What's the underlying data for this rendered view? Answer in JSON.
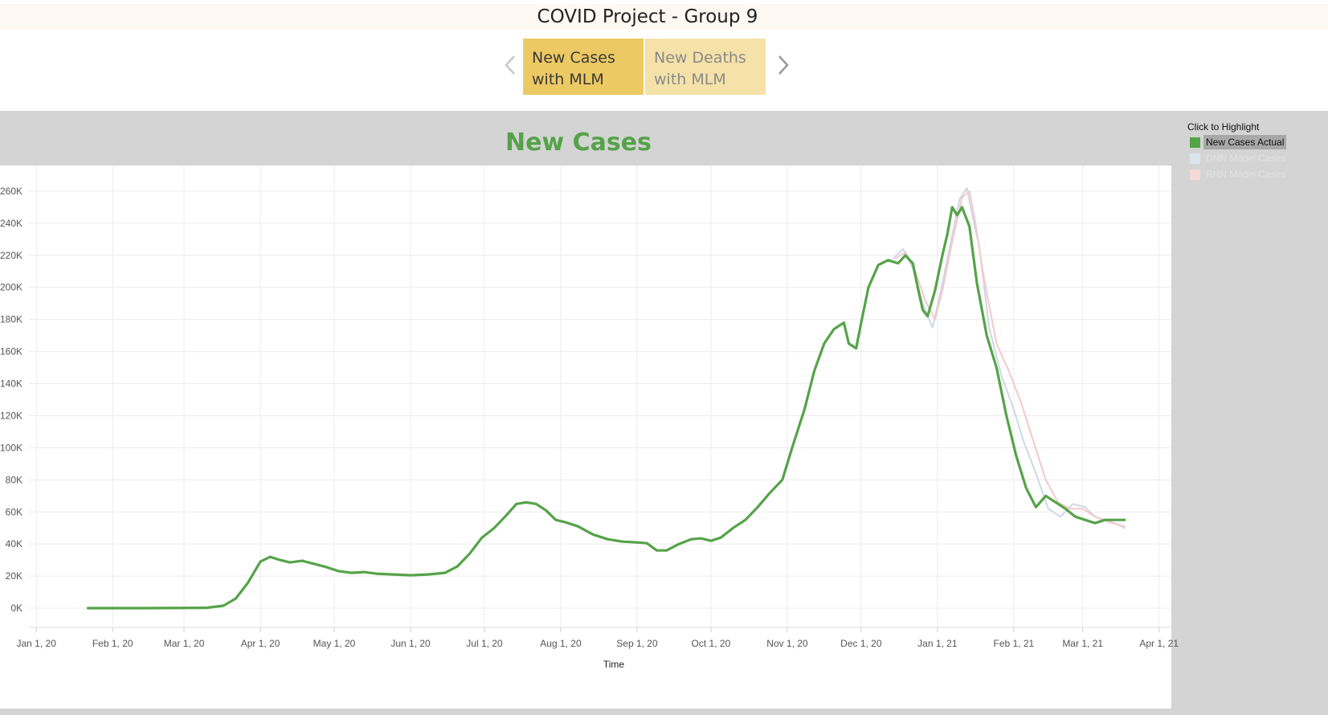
{
  "page": {
    "title": "COVID Project - Group 9"
  },
  "tabs": [
    {
      "line1": "New Cases",
      "line2": "with MLM",
      "active": true
    },
    {
      "line1": "New Deaths",
      "line2": "with MLM",
      "active": false
    }
  ],
  "icons": {
    "prev": "chevron-left-icon",
    "next": "chevron-right-icon"
  },
  "colors": {
    "actual": "#55a349",
    "dnn": "#cfd7e6",
    "rnn": "#f3c9c9",
    "title_bar": "#fdf8f1",
    "tab_active": "#ecc962",
    "tab_inactive": "#f5e2a9"
  },
  "legend": {
    "title": "Click to Highlight",
    "items": [
      {
        "label": "New Cases Actual",
        "color": "#55a349"
      },
      {
        "label": "DNN Model Cases",
        "color": "#dbe3ef"
      },
      {
        "label": "RNN Model Cases",
        "color": "#f5d8d8"
      }
    ]
  },
  "chart_data": {
    "type": "line",
    "title": "New Cases",
    "xlabel": "Time",
    "ylabel": "",
    "grid": true,
    "legend_position": "right",
    "ylim": [
      -12000,
      276000
    ],
    "xlim": [
      "2019-12-29",
      "2021-04-06"
    ],
    "y_ticks": [
      0,
      20000,
      40000,
      60000,
      80000,
      100000,
      120000,
      140000,
      160000,
      180000,
      200000,
      220000,
      240000,
      260000
    ],
    "y_tick_labels": [
      "0K",
      "20K",
      "40K",
      "60K",
      "80K",
      "100K",
      "120K",
      "140K",
      "160K",
      "180K",
      "200K",
      "220K",
      "240K",
      "260K"
    ],
    "x_ticks": [
      "2020-01-01",
      "2020-02-01",
      "2020-03-01",
      "2020-04-01",
      "2020-05-01",
      "2020-06-01",
      "2020-07-01",
      "2020-08-01",
      "2020-09-01",
      "2020-10-01",
      "2020-11-01",
      "2020-12-01",
      "2021-01-01",
      "2021-02-01",
      "2021-03-01",
      "2021-04-01"
    ],
    "x_tick_labels": [
      "Jan 1, 20",
      "Feb 1, 20",
      "Mar 1, 20",
      "Apr 1, 20",
      "May 1, 20",
      "Jun 1, 20",
      "Jul 1, 20",
      "Aug 1, 20",
      "Sep 1, 20",
      "Oct 1, 20",
      "Nov 1, 20",
      "Dec 1, 20",
      "Jan 1, 21",
      "Feb 1, 21",
      "Mar 1, 21",
      "Apr 1, 21"
    ],
    "series": [
      {
        "name": "New Cases Actual",
        "x": [
          "2020-01-22",
          "2020-02-15",
          "2020-03-10",
          "2020-03-17",
          "2020-03-22",
          "2020-03-27",
          "2020-04-01",
          "2020-04-05",
          "2020-04-09",
          "2020-04-13",
          "2020-04-18",
          "2020-04-23",
          "2020-04-28",
          "2020-05-03",
          "2020-05-08",
          "2020-05-13",
          "2020-05-18",
          "2020-05-25",
          "2020-06-01",
          "2020-06-08",
          "2020-06-15",
          "2020-06-20",
          "2020-06-25",
          "2020-06-30",
          "2020-07-05",
          "2020-07-10",
          "2020-07-14",
          "2020-07-18",
          "2020-07-22",
          "2020-07-26",
          "2020-07-30",
          "2020-08-03",
          "2020-08-08",
          "2020-08-14",
          "2020-08-20",
          "2020-08-26",
          "2020-09-01",
          "2020-09-05",
          "2020-09-09",
          "2020-09-13",
          "2020-09-18",
          "2020-09-23",
          "2020-09-27",
          "2020-10-01",
          "2020-10-05",
          "2020-10-10",
          "2020-10-15",
          "2020-10-20",
          "2020-10-25",
          "2020-10-30",
          "2020-11-03",
          "2020-11-08",
          "2020-11-12",
          "2020-11-16",
          "2020-11-20",
          "2020-11-24",
          "2020-11-26",
          "2020-11-29",
          "2020-12-01",
          "2020-12-04",
          "2020-12-08",
          "2020-12-12",
          "2020-12-16",
          "2020-12-19",
          "2020-12-22",
          "2020-12-24",
          "2020-12-26",
          "2020-12-28",
          "2020-12-31",
          "2021-01-03",
          "2021-01-05",
          "2021-01-07",
          "2021-01-09",
          "2021-01-11",
          "2021-01-14",
          "2021-01-17",
          "2021-01-21",
          "2021-01-25",
          "2021-01-29",
          "2021-02-02",
          "2021-02-06",
          "2021-02-10",
          "2021-02-14",
          "2021-02-18",
          "2021-02-22",
          "2021-02-26",
          "2021-03-02",
          "2021-03-06",
          "2021-03-10",
          "2021-03-14",
          "2021-03-18"
        ],
        "y": [
          0,
          0,
          200,
          1500,
          6000,
          16000,
          29000,
          32000,
          30000,
          28500,
          29500,
          27500,
          25500,
          23000,
          22000,
          22500,
          21500,
          21000,
          20500,
          21000,
          22000,
          26000,
          34000,
          44000,
          50000,
          58000,
          65000,
          66000,
          65000,
          61000,
          55000,
          53500,
          51000,
          46000,
          43000,
          41500,
          41000,
          40500,
          36000,
          36000,
          40000,
          43000,
          43500,
          42000,
          44000,
          50000,
          55000,
          63000,
          72000,
          80000,
          100000,
          124000,
          148000,
          165000,
          174000,
          178000,
          165000,
          162000,
          178000,
          200000,
          214000,
          217000,
          215000,
          220000,
          215000,
          200000,
          186000,
          182000,
          198000,
          220000,
          233000,
          250000,
          245000,
          250000,
          238000,
          203000,
          170000,
          150000,
          120000,
          95000,
          75000,
          63000,
          70000,
          66000,
          62000,
          57000,
          55000,
          53000,
          55000,
          55000,
          55000
        ]
      },
      {
        "name": "DNN Model Cases",
        "x": [
          "2020-12-14",
          "2020-12-18",
          "2020-12-22",
          "2020-12-26",
          "2020-12-30",
          "2021-01-02",
          "2021-01-06",
          "2021-01-10",
          "2021-01-13",
          "2021-01-15",
          "2021-01-18",
          "2021-01-22",
          "2021-01-27",
          "2021-02-01",
          "2021-02-05",
          "2021-02-10",
          "2021-02-15",
          "2021-02-20",
          "2021-02-25",
          "2021-03-02",
          "2021-03-06",
          "2021-03-10",
          "2021-03-14",
          "2021-03-18"
        ],
        "y": [
          218000,
          224000,
          212000,
          190000,
          175000,
          195000,
          225000,
          255000,
          262000,
          246000,
          225000,
          175000,
          145000,
          124000,
          104000,
          84000,
          62000,
          57000,
          65000,
          63000,
          57000,
          55000,
          53000,
          50000
        ]
      },
      {
        "name": "RNN Model Cases",
        "x": [
          "2020-12-15",
          "2020-12-19",
          "2020-12-23",
          "2020-12-27",
          "2020-12-31",
          "2021-01-03",
          "2021-01-07",
          "2021-01-11",
          "2021-01-14",
          "2021-01-16",
          "2021-01-20",
          "2021-01-25",
          "2021-01-30",
          "2021-02-04",
          "2021-02-09",
          "2021-02-14",
          "2021-02-19",
          "2021-02-24",
          "2021-03-01",
          "2021-03-05",
          "2021-03-09",
          "2021-03-13",
          "2021-03-18"
        ],
        "y": [
          218000,
          222000,
          210000,
          192000,
          180000,
          198000,
          228000,
          256000,
          260000,
          244000,
          205000,
          165000,
          148000,
          128000,
          104000,
          80000,
          66000,
          62000,
          62000,
          58000,
          55000,
          53000,
          51000
        ]
      }
    ]
  }
}
